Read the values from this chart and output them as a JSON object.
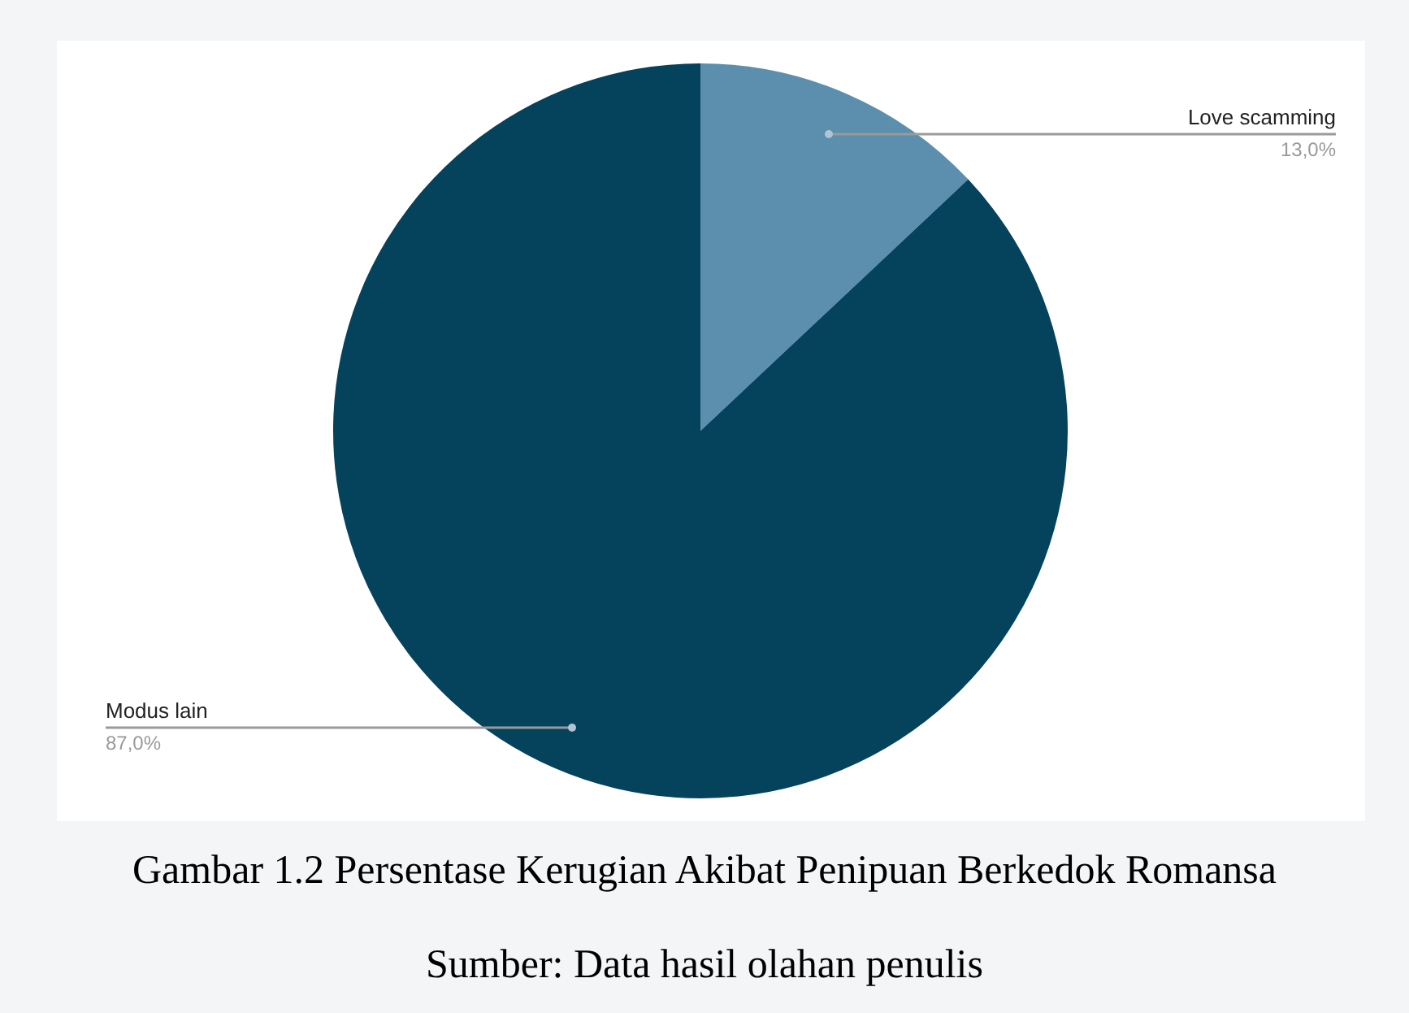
{
  "chart_data": {
    "type": "pie",
    "categories": [
      "Love scamming",
      "Modus lain"
    ],
    "values": [
      13,
      87
    ],
    "colors": [
      "#5b8fad",
      "#05425c"
    ],
    "value_labels": [
      "13,0%",
      "87,0%"
    ],
    "legend": false,
    "annotations": [
      "Gambar 1.2 Persentase Kerugian Akibat Penipuan Berkedok Romansa",
      "Sumber: Data hasil olahan penulis"
    ]
  }
}
